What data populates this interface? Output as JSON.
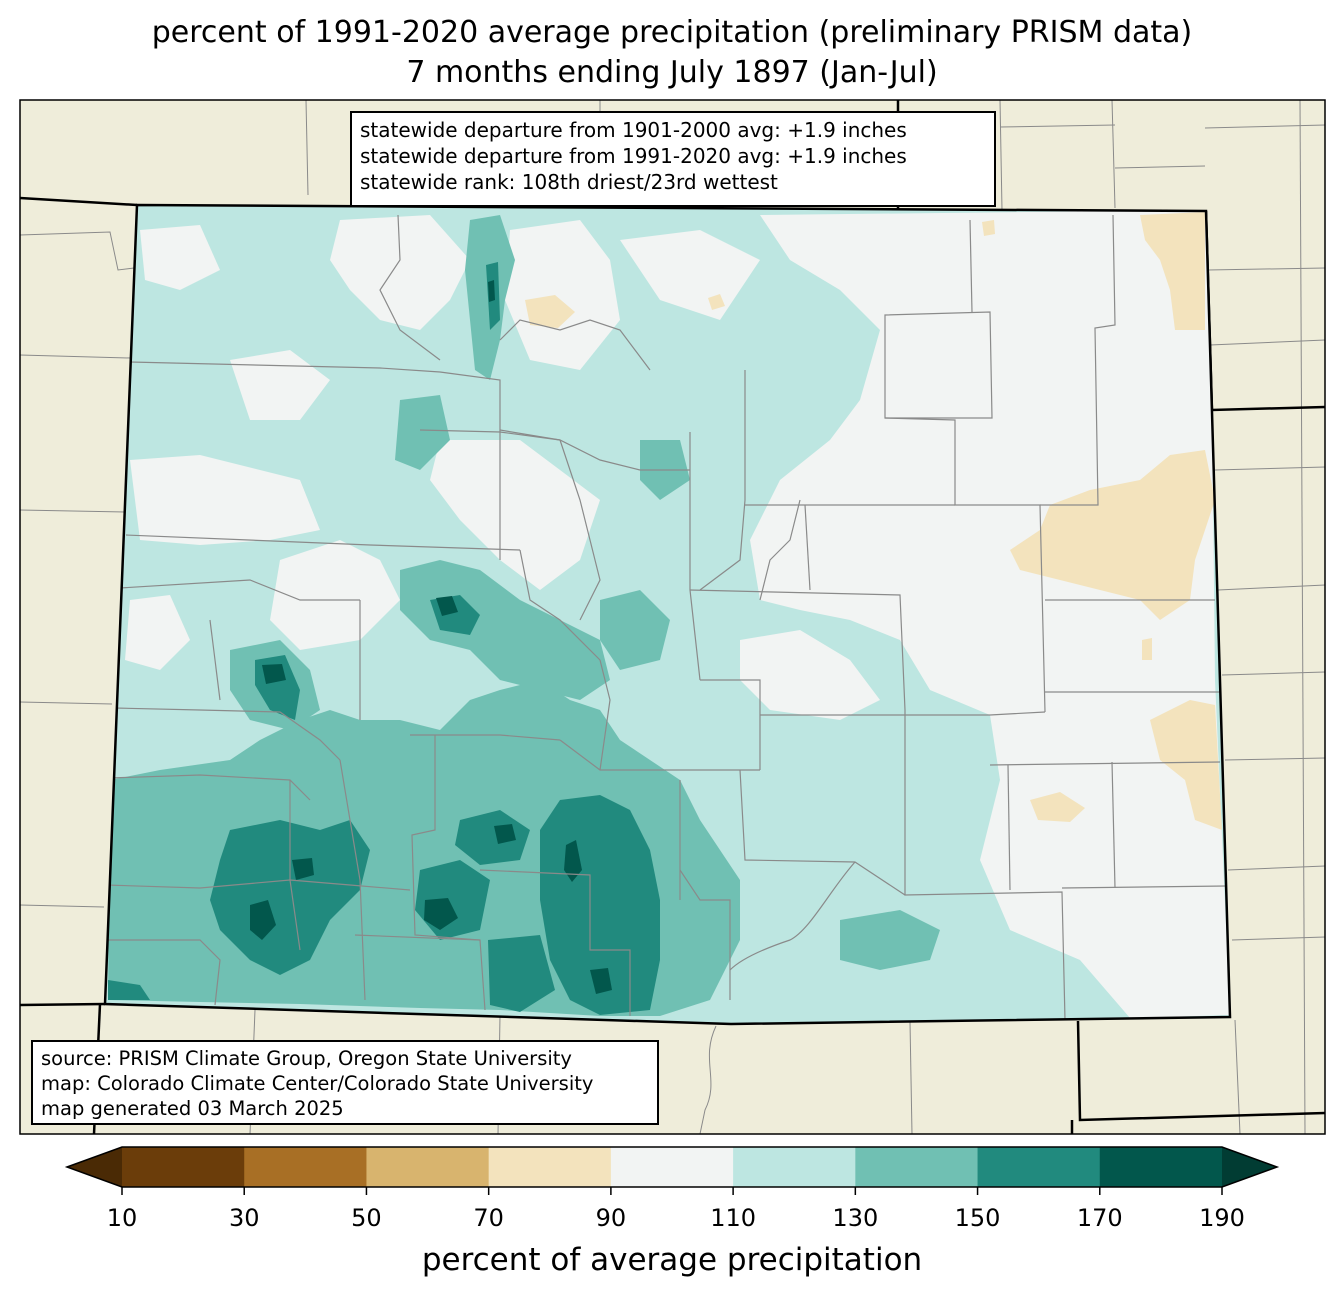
{
  "title": {
    "line1": "percent of 1991-2020 average precipitation (preliminary PRISM data)",
    "line2": "7 months ending July 1897 (Jan-Jul)"
  },
  "stats": {
    "line1": "statewide departure from 1901-2000 avg: +1.9 inches",
    "line2": "statewide departure from 1991-2020 avg: +1.9 inches",
    "line3": "statewide rank: 108th driest/23rd wettest"
  },
  "source": {
    "line1": "source: PRISM Climate Group, Oregon State University",
    "line2": "map: Colorado Climate Center/Colorado State University",
    "line3": "map generated 03 March 2025"
  },
  "colorbar": {
    "label": "percent of average precipitation",
    "ticks": [
      "10",
      "30",
      "50",
      "70",
      "90",
      "110",
      "130",
      "150",
      "170",
      "190"
    ],
    "colors": [
      "#6b3d0a",
      "#a86f25",
      "#d8b46e",
      "#f3e3bd",
      "#f2f4f3",
      "#bde6e1",
      "#70c0b3",
      "#218a7e",
      "#02574c"
    ],
    "extend_low": "#4a2a05",
    "extend_high": "#013c33"
  },
  "map": {
    "outside_color": "#efedda",
    "state": "Colorado"
  }
}
